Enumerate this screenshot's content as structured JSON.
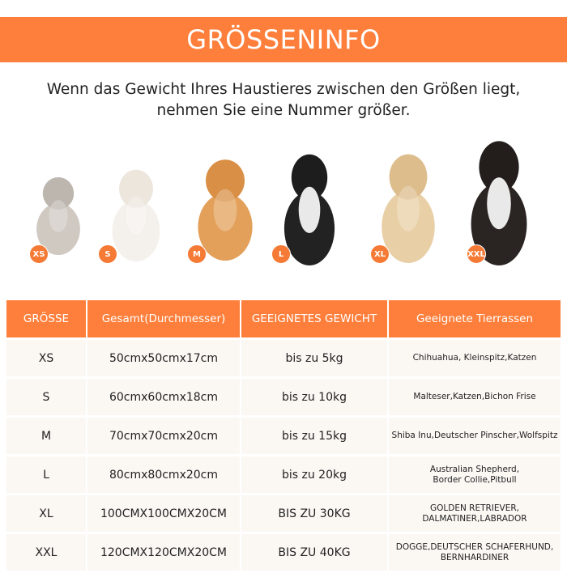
{
  "banner": {
    "title": "GRÖSSENINFO",
    "color": "#fe7f3b"
  },
  "subtitle": {
    "line1": "Wenn das Gewicht Ihres Haustieres zwischen den Größen liegt,",
    "line2": "nehmen Sie eine Nummer größer."
  },
  "animals": [
    {
      "size": "XS",
      "kind": "cat"
    },
    {
      "size": "S",
      "kind": "maltese"
    },
    {
      "size": "M",
      "kind": "corgi"
    },
    {
      "size": "L",
      "kind": "border-collie"
    },
    {
      "size": "XL",
      "kind": "golden-retriever"
    },
    {
      "size": "XXL",
      "kind": "bernese"
    }
  ],
  "table": {
    "headers": [
      "GRÖSSE",
      "Gesamt(Durchmesser)",
      "GEEIGNETES GEWICHT",
      "Geeignete Tierrassen"
    ],
    "rows": [
      [
        "XS",
        "50cmx50cmx17cm",
        "bis zu 5kg",
        "Chihuahua, Kleinspitz,Katzen"
      ],
      [
        "S",
        "60cmx60cmx18cm",
        "bis zu 10kg",
        "Malteser,Katzen,Bichon Frise"
      ],
      [
        "M",
        "70cmx70cmx20cm",
        "bis zu 15kg",
        "Shiba Inu,Deutscher Pinscher,Wolfspitz"
      ],
      [
        "L",
        "80cmx80cmx20cm",
        "bis zu 20kg",
        "Australian Shepherd,\nBorder Collie,Pitbull"
      ],
      [
        "XL",
        "100CMX100CMX20CM",
        "BIS ZU 30KG",
        "GOLDEN RETRIEVER,\nDALMATINER,LABRADOR"
      ],
      [
        "XXL",
        "120CMX120CMX20CM",
        "BIS ZU 40KG",
        "DOGGE,DEUTSCHER SCHAFERHUND,\nBERNHARDINER"
      ]
    ]
  }
}
